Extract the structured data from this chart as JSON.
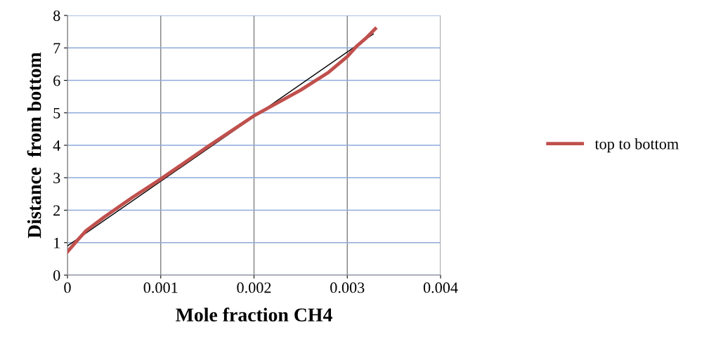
{
  "chart_data": {
    "type": "line",
    "xlabel": "Mole fraction CH4",
    "ylabel": "Distance  from bottom",
    "series": [
      {
        "name": "top to bottom",
        "color": "#c0504d",
        "x": [
          0,
          0.0001,
          0.0002,
          0.0004,
          0.0007,
          0.001,
          0.0015,
          0.002,
          0.0025,
          0.0028,
          0.003,
          0.0031,
          0.0032,
          0.0033
        ],
        "values": [
          0.72,
          1.05,
          1.37,
          1.8,
          2.4,
          2.96,
          3.95,
          4.91,
          5.7,
          6.25,
          6.73,
          7.05,
          7.3,
          7.59
        ]
      },
      {
        "type": "line",
        "color": "#000000",
        "x": [
          0,
          0.00328
        ],
        "values": [
          0.9,
          7.43
        ]
      }
    ],
    "xlim": [
      0,
      0.004
    ],
    "xticks": [
      0,
      0.001,
      0.002,
      0.003,
      0.004
    ],
    "ylim": [
      0,
      8
    ],
    "yticks": [
      0,
      1,
      2,
      3,
      4,
      5,
      6,
      7,
      8
    ],
    "grid": true,
    "legend": "right"
  }
}
